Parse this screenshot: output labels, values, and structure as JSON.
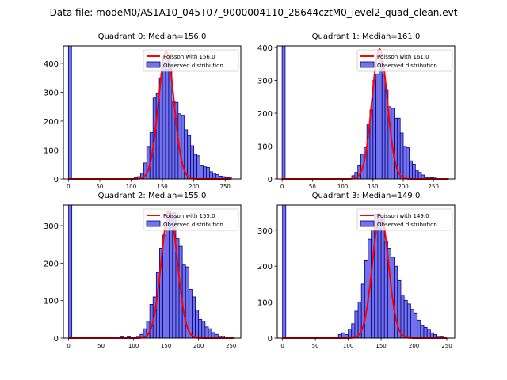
{
  "suptitle": "Data file: modeM0/AS1A10_045T07_9000004110_28644cztM0_level2_quad_clean.evt",
  "colors": {
    "bar_fill": "#7272ea",
    "bar_edge": "#000080",
    "curve": "#ff0000",
    "axis": "#000000"
  },
  "chart_data": [
    {
      "type": "bar",
      "title": "Quadrant 0: Median=156.0",
      "xlim": [
        -8,
        275
      ],
      "ylim": [
        0,
        460
      ],
      "xticks": [
        0,
        50,
        100,
        150,
        200,
        250
      ],
      "yticks": [
        0,
        100,
        200,
        300,
        400
      ],
      "bin_width": 5,
      "legend": {
        "curve_label": "Poisson with 156.0",
        "bars_label": "Observed distribution",
        "placement": "top-right"
      },
      "bars": [
        [
          0,
          460
        ],
        [
          105,
          5
        ],
        [
          110,
          8
        ],
        [
          115,
          20
        ],
        [
          120,
          55
        ],
        [
          125,
          110
        ],
        [
          130,
          160
        ],
        [
          135,
          280
        ],
        [
          140,
          295
        ],
        [
          145,
          350
        ],
        [
          150,
          395
        ],
        [
          155,
          420
        ],
        [
          160,
          395
        ],
        [
          165,
          270
        ],
        [
          170,
          265
        ],
        [
          175,
          225
        ],
        [
          180,
          220
        ],
        [
          185,
          170
        ],
        [
          190,
          150
        ],
        [
          195,
          115
        ],
        [
          200,
          85
        ],
        [
          205,
          80
        ],
        [
          210,
          45
        ],
        [
          215,
          42
        ],
        [
          220,
          40
        ],
        [
          225,
          25
        ],
        [
          230,
          20
        ],
        [
          235,
          15
        ],
        [
          240,
          10
        ],
        [
          245,
          8
        ],
        [
          250,
          5
        ],
        [
          255,
          5
        ]
      ],
      "curve": {
        "mean": 156,
        "peak": 440,
        "sigma": 12.5,
        "x_start": 0,
        "x_end": 260
      }
    },
    {
      "type": "bar",
      "title": "Quadrant 1: Median=161.0",
      "xlim": [
        -8,
        285
      ],
      "ylim": [
        0,
        405
      ],
      "xticks": [
        0,
        50,
        100,
        150,
        200,
        250
      ],
      "yticks": [
        0,
        100,
        200,
        300,
        400
      ],
      "bin_width": 5,
      "legend": {
        "curve_label": "Poisson with 161.0",
        "bars_label": "Observed distribution",
        "placement": "top-right"
      },
      "bars": [
        [
          0,
          405
        ],
        [
          115,
          10
        ],
        [
          120,
          20
        ],
        [
          125,
          40
        ],
        [
          130,
          75
        ],
        [
          135,
          95
        ],
        [
          140,
          165
        ],
        [
          145,
          210
        ],
        [
          150,
          300
        ],
        [
          155,
          320
        ],
        [
          160,
          380
        ],
        [
          165,
          320
        ],
        [
          170,
          270
        ],
        [
          175,
          220
        ],
        [
          180,
          215
        ],
        [
          185,
          185
        ],
        [
          190,
          185
        ],
        [
          195,
          140
        ],
        [
          200,
          100
        ],
        [
          205,
          95
        ],
        [
          210,
          55
        ],
        [
          215,
          45
        ],
        [
          220,
          25
        ],
        [
          225,
          20
        ],
        [
          230,
          12
        ],
        [
          235,
          5
        ],
        [
          240,
          5
        ],
        [
          245,
          4
        ],
        [
          250,
          3
        ]
      ],
      "curve": {
        "mean": 161,
        "peak": 395,
        "sigma": 12.7,
        "x_start": 0,
        "x_end": 275
      }
    },
    {
      "type": "bar",
      "title": "Quadrant 2: Median=155.0",
      "xlim": [
        -8,
        265
      ],
      "ylim": [
        0,
        355
      ],
      "xticks": [
        0,
        50,
        100,
        150,
        200,
        250
      ],
      "yticks": [
        0,
        100,
        200,
        300
      ],
      "bin_width": 5,
      "legend": {
        "curve_label": "Poisson with 155.0",
        "bars_label": "Observed distribution",
        "placement": "top-right"
      },
      "bars": [
        [
          0,
          355
        ],
        [
          80,
          3
        ],
        [
          90,
          3
        ],
        [
          105,
          5
        ],
        [
          110,
          10
        ],
        [
          115,
          25
        ],
        [
          120,
          45
        ],
        [
          125,
          90
        ],
        [
          130,
          110
        ],
        [
          135,
          175
        ],
        [
          140,
          240
        ],
        [
          145,
          275
        ],
        [
          150,
          340
        ],
        [
          155,
          330
        ],
        [
          160,
          335
        ],
        [
          165,
          265
        ],
        [
          170,
          245
        ],
        [
          175,
          195
        ],
        [
          180,
          190
        ],
        [
          185,
          130
        ],
        [
          190,
          110
        ],
        [
          195,
          75
        ],
        [
          200,
          50
        ],
        [
          205,
          45
        ],
        [
          210,
          30
        ],
        [
          215,
          25
        ],
        [
          220,
          15
        ],
        [
          225,
          10
        ],
        [
          230,
          5
        ],
        [
          235,
          5
        ]
      ],
      "curve": {
        "mean": 155,
        "peak": 340,
        "sigma": 12.45,
        "x_start": 0,
        "x_end": 255
      }
    },
    {
      "type": "bar",
      "title": "Quadrant 3: Median=149.0",
      "xlim": [
        -8,
        262
      ],
      "ylim": [
        0,
        370
      ],
      "xticks": [
        0,
        50,
        100,
        150,
        200,
        250
      ],
      "yticks": [
        0,
        100,
        200,
        300
      ],
      "bin_width": 5,
      "legend": {
        "curve_label": "Poisson with 149.0",
        "bars_label": "Observed distribution",
        "placement": "top-right"
      },
      "bars": [
        [
          0,
          370
        ],
        [
          85,
          10
        ],
        [
          90,
          15
        ],
        [
          95,
          10
        ],
        [
          100,
          25
        ],
        [
          105,
          40
        ],
        [
          110,
          75
        ],
        [
          115,
          100
        ],
        [
          120,
          150
        ],
        [
          125,
          215
        ],
        [
          130,
          275
        ],
        [
          135,
          300
        ],
        [
          140,
          345
        ],
        [
          145,
          330
        ],
        [
          150,
          340
        ],
        [
          155,
          270
        ],
        [
          160,
          250
        ],
        [
          165,
          225
        ],
        [
          170,
          200
        ],
        [
          175,
          160
        ],
        [
          180,
          120
        ],
        [
          185,
          105
        ],
        [
          190,
          95
        ],
        [
          195,
          80
        ],
        [
          200,
          70
        ],
        [
          205,
          50
        ],
        [
          210,
          35
        ],
        [
          215,
          30
        ],
        [
          220,
          25
        ],
        [
          225,
          15
        ],
        [
          230,
          10
        ],
        [
          235,
          5
        ],
        [
          240,
          3
        ]
      ],
      "curve": {
        "mean": 149,
        "peak": 345,
        "sigma": 12.2,
        "x_start": 0,
        "x_end": 250
      }
    }
  ]
}
